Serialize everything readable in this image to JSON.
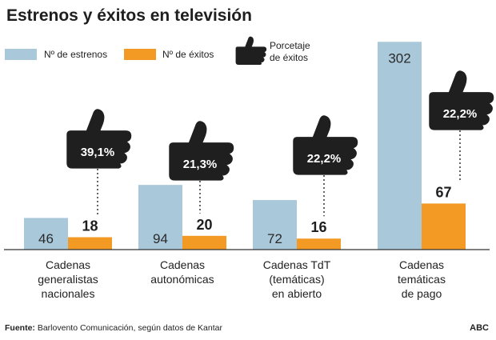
{
  "header": {
    "title": "Estrenos y éxitos en televisión"
  },
  "legend": {
    "estrenos": "Nº de estrenos",
    "exitos": "Nº de éxitos",
    "porcentaje_line1": "Porcetaje",
    "porcentaje_line2": "de éxitos"
  },
  "colors": {
    "estrenos": "#a9c8da",
    "exitos": "#f39a25",
    "thumb": "#1f1f1f",
    "axis": "#333333"
  },
  "icons": {
    "percentage": "thumbs-up-icon"
  },
  "chart_data": {
    "type": "bar",
    "categories": [
      "Cadenas generalistas nacionales",
      "Cadenas autonómicas",
      "Cadenas TdT (temáticas) en abierto",
      "Cadenas temáticas de pago"
    ],
    "category_lines": [
      [
        "Cadenas",
        "generalistas",
        "nacionales"
      ],
      [
        "Cadenas",
        "autonómicas"
      ],
      [
        "Cadenas TdT",
        "(temáticas)",
        "en abierto"
      ],
      [
        "Cadenas",
        "temáticas",
        "de pago"
      ]
    ],
    "series": [
      {
        "name": "Nº de estrenos",
        "values": [
          46,
          94,
          72,
          302
        ]
      },
      {
        "name": "Nº de éxitos",
        "values": [
          18,
          20,
          16,
          67
        ]
      }
    ],
    "value_labels": {
      "estrenos": [
        "46",
        "94",
        "72",
        "302"
      ],
      "exitos": [
        "18",
        "20",
        "16",
        "67"
      ]
    },
    "percentages": [
      "39,1%",
      "21,3%",
      "22,2%",
      "22,2%"
    ],
    "ylim": [
      0,
      310
    ],
    "grid": false,
    "legend_position": "top-left"
  },
  "footer": {
    "source_label": "Fuente:",
    "source_text": " Barlovento Comunicación, según datos de Kantar",
    "brand": "ABC"
  }
}
